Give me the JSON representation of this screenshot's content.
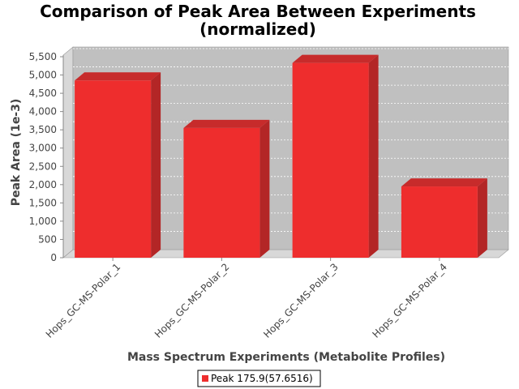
{
  "chart_data": {
    "type": "bar",
    "title": "Comparison of Peak Area Between Experiments",
    "subtitle": "(normalized)",
    "xlabel": "Mass Spectrum Experiments (Metabolite Profiles)",
    "ylabel": "Peak Area (1e-3)",
    "categories": [
      "Hops_GC-MS-Polar_1",
      "Hops_GC-MS-Polar_2",
      "Hops_GC-MS-Polar_3",
      "Hops_GC-MS-Polar_4"
    ],
    "series": [
      {
        "name": "Peak 175.9(57.6516)",
        "values": [
          4850,
          3550,
          5330,
          1950
        ]
      }
    ],
    "ylim": [
      0,
      5500
    ],
    "yticks": [
      0,
      500,
      1000,
      1500,
      2000,
      2500,
      3000,
      3500,
      4000,
      4500,
      5000,
      5500
    ],
    "ytick_labels": [
      "0",
      "500",
      "1,000",
      "1,500",
      "2,000",
      "2,500",
      "3,000",
      "3,500",
      "4,000",
      "4,500",
      "5,000",
      "5,500"
    ],
    "grid": true,
    "legend_position": "bottom",
    "colors": {
      "bar_front": "#ee2d2d",
      "bar_side": "#b32626",
      "bar_top": "#c72b2b",
      "plot_back": "#c0c0c0",
      "plot_floor": "#d8d8d8",
      "grid": "#ffffff"
    }
  }
}
